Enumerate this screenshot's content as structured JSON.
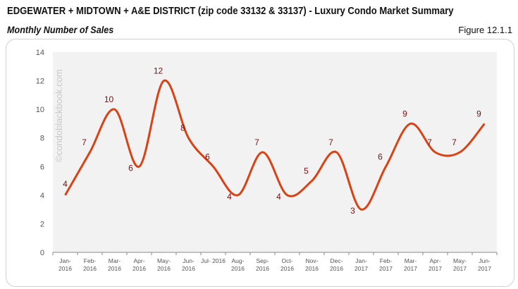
{
  "header": {
    "title": "EDGEWATER + MIDTOWN + A&E DISTRICT (zip code 33132 & 33137) - Luxury Condo Market Summary",
    "subtitle": "Monthly Number of Sales",
    "figure": "Figure 12.1.1"
  },
  "watermark": "©condoblackbook.com",
  "chart_data": {
    "type": "line",
    "title": "Monthly Number of Sales",
    "categories": [
      "Jan-2016",
      "Feb-2016",
      "Mar-2016",
      "Apr-2016",
      "May-2016",
      "Jun-2016",
      "Jul-2016",
      "Aug-2016",
      "Sep-2016",
      "Oct-2016",
      "Nov-2016",
      "Dec-2016",
      "Jan-2017",
      "Feb-2017",
      "Mar-2017",
      "Apr-2017",
      "May-2017",
      "Jun-2017"
    ],
    "tick_labels": [
      [
        "Jan-",
        "2016"
      ],
      [
        "Feb-",
        "2016"
      ],
      [
        "Mar-",
        "2016"
      ],
      [
        "Apr-",
        "2016"
      ],
      [
        "May-",
        "2016"
      ],
      [
        "Jun-",
        "2016"
      ],
      [
        "Jul- 2016",
        ""
      ],
      [
        "Aug-",
        "2016"
      ],
      [
        "Sep-",
        "2016"
      ],
      [
        "Oct-",
        "2016"
      ],
      [
        "Nov-",
        "2016"
      ],
      [
        "Dec-",
        "2016"
      ],
      [
        "Jan-",
        "2017"
      ],
      [
        "Feb-",
        "2017"
      ],
      [
        "Mar-",
        "2017"
      ],
      [
        "Apr-",
        "2017"
      ],
      [
        "May-",
        "2017"
      ],
      [
        "Jun-",
        "2017"
      ]
    ],
    "values": [
      4,
      7,
      10,
      6,
      12,
      8,
      6,
      4,
      7,
      4,
      5,
      7,
      3,
      6,
      9,
      7,
      7,
      9
    ],
    "ylim": [
      0,
      14
    ],
    "yticks": [
      0,
      2,
      4,
      6,
      8,
      10,
      12,
      14
    ],
    "smooth": true,
    "grid": false,
    "data_labels": true,
    "colors": {
      "line": "#d84315",
      "label": "#7a1010",
      "plot_bg": "#f2f2f2"
    }
  }
}
